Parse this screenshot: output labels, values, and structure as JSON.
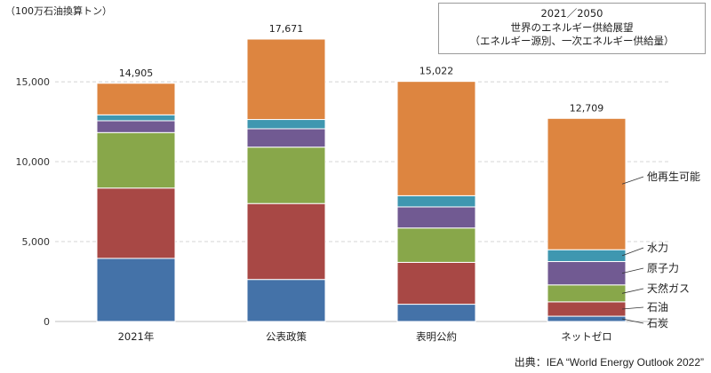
{
  "unit_label": "（100万石油換算トン）",
  "title_lines": [
    "2021／2050",
    "世界のエネルギー供給展望",
    "（エネルギー源別、一次エネルギー供給量）"
  ],
  "source": "出典：IEA “World Energy Outlook 2022”",
  "chart_data": {
    "type": "bar",
    "stacked": true,
    "categories": [
      "2021年",
      "公表政策",
      "表明公約",
      "ネットゼロ"
    ],
    "totals": [
      "14,905",
      "17,671",
      "15,022",
      "12,709"
    ],
    "ylim": [
      0,
      17671
    ],
    "yticks": [
      0,
      5000,
      10000,
      15000
    ],
    "ytick_labels": [
      "0",
      "5,000",
      "10,000",
      "15,000"
    ],
    "grid": true,
    "series": [
      {
        "name": "石炭",
        "color": "#4472a8",
        "values": [
          3950,
          2630,
          1080,
          330
        ]
      },
      {
        "name": "石油",
        "color": "#a84845",
        "values": [
          4400,
          4750,
          2620,
          900
        ]
      },
      {
        "name": "天然ガス",
        "color": "#88a74a",
        "values": [
          3470,
          3530,
          2150,
          1060
        ]
      },
      {
        "name": "原子力",
        "color": "#715a92",
        "values": [
          740,
          1150,
          1320,
          1460
        ]
      },
      {
        "name": "水力",
        "color": "#3f97b0",
        "values": [
          370,
          580,
          700,
          740
        ]
      },
      {
        "name": "他再生可能",
        "color": "#dd8540",
        "values": [
          1975,
          5031,
          7152,
          8219
        ]
      }
    ]
  }
}
